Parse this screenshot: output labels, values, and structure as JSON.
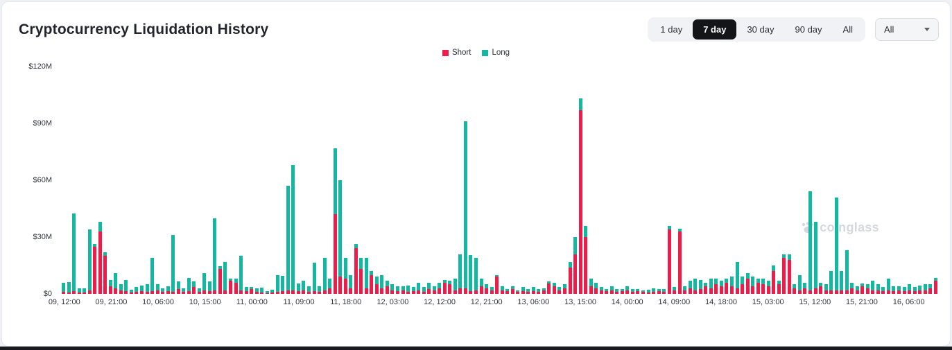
{
  "header": {
    "title": "Cryptocurrency Liquidation History"
  },
  "controls": {
    "range_options": [
      {
        "label": "1 day",
        "active": false
      },
      {
        "label": "7 day",
        "active": true
      },
      {
        "label": "30 day",
        "active": false
      },
      {
        "label": "90 day",
        "active": false
      },
      {
        "label": "All",
        "active": false
      }
    ],
    "dropdown_value": "All"
  },
  "legend": {
    "items": [
      {
        "label": "Short",
        "color": "#ee1c49"
      },
      {
        "label": "Long",
        "color": "#14b8a0"
      }
    ]
  },
  "watermark": {
    "text": "coinglass"
  },
  "chart_data": {
    "type": "bar",
    "stacked": true,
    "title": "Cryptocurrency Liquidation History",
    "unit": "USD millions",
    "ylim": [
      0,
      120
    ],
    "grid": false,
    "legend_position": "top-center",
    "y_ticks": [
      {
        "label": "$0",
        "value": 0
      },
      {
        "label": "$30M",
        "value": 30
      },
      {
        "label": "$60M",
        "value": 60
      },
      {
        "label": "$90M",
        "value": 90
      },
      {
        "label": "$120M",
        "value": 120
      }
    ],
    "x_tick_every": 9,
    "x_tick_labels": [
      "09, 12:00",
      "09, 21:00",
      "10, 06:00",
      "10, 15:00",
      "11, 00:00",
      "11, 09:00",
      "11, 18:00",
      "12, 03:00",
      "12, 12:00",
      "12, 21:00",
      "13, 06:00",
      "13, 15:00",
      "14, 00:00",
      "14, 09:00",
      "14, 18:00",
      "15, 03:00",
      "15, 12:00",
      "15, 21:00",
      "16, 06:00"
    ],
    "series": [
      {
        "name": "Short",
        "color": "#ee1c49",
        "values": [
          1.2,
          0.8,
          1.5,
          0.6,
          0.9,
          2,
          25,
          33,
          20,
          4,
          3,
          2,
          1.5,
          0.7,
          1,
          1.5,
          1,
          1.5,
          2,
          1,
          1.5,
          1,
          2.5,
          1,
          1.5,
          3.5,
          1,
          2,
          1.5,
          2,
          13,
          2,
          7,
          6,
          2,
          1.5,
          2.5,
          1,
          0.8,
          0.5,
          0.6,
          1,
          1.5,
          2,
          2,
          1.5,
          2,
          1,
          1.5,
          1,
          2,
          3,
          42,
          9,
          8,
          3,
          24,
          13,
          3,
          10,
          5,
          3,
          4,
          2,
          1.5,
          2,
          1,
          1.5,
          2,
          1,
          2.5,
          2,
          3,
          6,
          5,
          2,
          3,
          3,
          1.5,
          2,
          4,
          3,
          2,
          9,
          2,
          1.5,
          2.5,
          1,
          1.5,
          1,
          1.5,
          1,
          2,
          5.5,
          4,
          2,
          3,
          14,
          21,
          97,
          30,
          4,
          3,
          2,
          1.5,
          2,
          1,
          1.5,
          2,
          1,
          1.5,
          1,
          0.8,
          1,
          1.5,
          1,
          34,
          2,
          33,
          2,
          3,
          2,
          2.5,
          4,
          3,
          5,
          4,
          6,
          4,
          3,
          5,
          8,
          4,
          6,
          5,
          4,
          12,
          5,
          19,
          18,
          3,
          2,
          3,
          2,
          3,
          4,
          2,
          2,
          2,
          2,
          2,
          3,
          2,
          4,
          3,
          2,
          2,
          1.5,
          2,
          1.5,
          2,
          1.5,
          2,
          1.5,
          2,
          2,
          3,
          7
        ]
      },
      {
        "name": "Long",
        "color": "#14b8a0",
        "values": [
          4.5,
          5.5,
          41,
          2.5,
          2,
          32,
          1.5,
          5,
          2,
          3.5,
          8,
          3,
          6,
          1.5,
          2.5,
          3,
          4,
          17.5,
          3,
          2,
          2.5,
          30,
          4,
          2,
          7,
          3,
          2,
          9,
          5,
          38,
          1.5,
          15,
          1,
          2,
          18,
          2,
          1,
          2,
          2.5,
          1,
          1.5,
          9,
          8,
          55,
          66,
          4,
          5,
          3,
          15,
          3,
          17,
          5,
          35,
          51,
          11,
          7,
          2.5,
          6,
          16,
          2,
          4,
          7,
          3,
          3,
          2.5,
          2,
          3.5,
          2,
          4,
          2.5,
          3.5,
          2,
          3,
          1.5,
          2,
          6,
          18,
          88,
          19,
          17,
          4,
          2,
          1.5,
          1,
          2,
          1,
          1.5,
          1,
          2,
          1.5,
          2,
          1.5,
          1,
          1,
          2,
          1.5,
          2,
          3,
          9,
          6,
          6,
          4,
          3,
          1.5,
          1,
          2,
          1.5,
          1,
          2,
          1.5,
          1,
          1,
          1.5,
          2,
          1,
          1.5,
          2,
          1.5,
          1.5,
          2,
          4,
          6,
          5,
          2,
          5,
          3,
          3,
          2,
          5,
          14,
          4,
          3,
          5,
          2,
          3,
          3,
          3,
          2,
          2,
          3,
          2,
          8,
          3,
          52,
          35,
          2,
          3,
          10,
          49,
          10,
          21,
          3,
          2,
          1.5,
          2,
          5,
          3,
          2,
          6,
          2.5,
          2,
          2,
          3,
          2,
          2.5,
          3,
          2,
          1.5
        ]
      }
    ]
  }
}
